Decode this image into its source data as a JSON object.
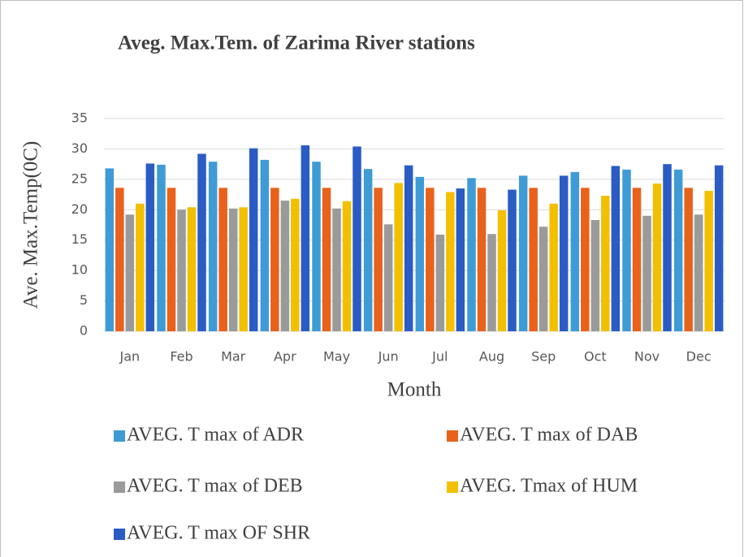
{
  "chart_data": {
    "type": "bar",
    "title": "Aveg. Max.Tem. of Zarima River stations",
    "x_label": "Month",
    "y_label": "Ave. Max.Temp(0C)",
    "categories": [
      "Jan",
      "Feb",
      "Mar",
      "Apr",
      "May",
      "Jun",
      "Jul",
      "Aug",
      "Sep",
      "Oct",
      "Nov",
      "Dec"
    ],
    "series": [
      {
        "name": "AVEG. T max of ADR",
        "color": "#3e9bd6",
        "values": [
          26.8,
          27.4,
          27.9,
          28.2,
          27.9,
          26.7,
          25.4,
          25.2,
          25.6,
          26.2,
          26.6,
          26.6
        ]
      },
      {
        "name": "AVEG. T max of DAB",
        "color": "#e8621c",
        "values": [
          23.6,
          23.6,
          23.6,
          23.6,
          23.6,
          23.6,
          23.6,
          23.6,
          23.6,
          23.6,
          23.6,
          23.6
        ]
      },
      {
        "name": "AVEG. T max of DEB",
        "color": "#9a9a9a",
        "values": [
          19.2,
          20.0,
          20.2,
          21.5,
          20.2,
          17.6,
          15.9,
          16.0,
          17.2,
          18.3,
          19.0,
          19.2
        ]
      },
      {
        "name": "AVEG. Tmax of HUM",
        "color": "#f2c000",
        "values": [
          21.0,
          20.4,
          20.4,
          21.8,
          21.4,
          24.4,
          22.9,
          19.9,
          21.0,
          22.3,
          24.3,
          23.1
        ]
      },
      {
        "name": "AVEG. T max OF SHR",
        "color": "#2a5cc4",
        "values": [
          27.6,
          29.2,
          30.1,
          30.6,
          30.4,
          27.3,
          23.5,
          23.3,
          25.6,
          27.2,
          27.5,
          27.3
        ]
      }
    ],
    "ylim": [
      0,
      35
    ],
    "yticks": [
      0,
      5,
      10,
      15,
      20,
      25,
      30,
      35
    ],
    "grid": true,
    "legend": "bottom"
  }
}
